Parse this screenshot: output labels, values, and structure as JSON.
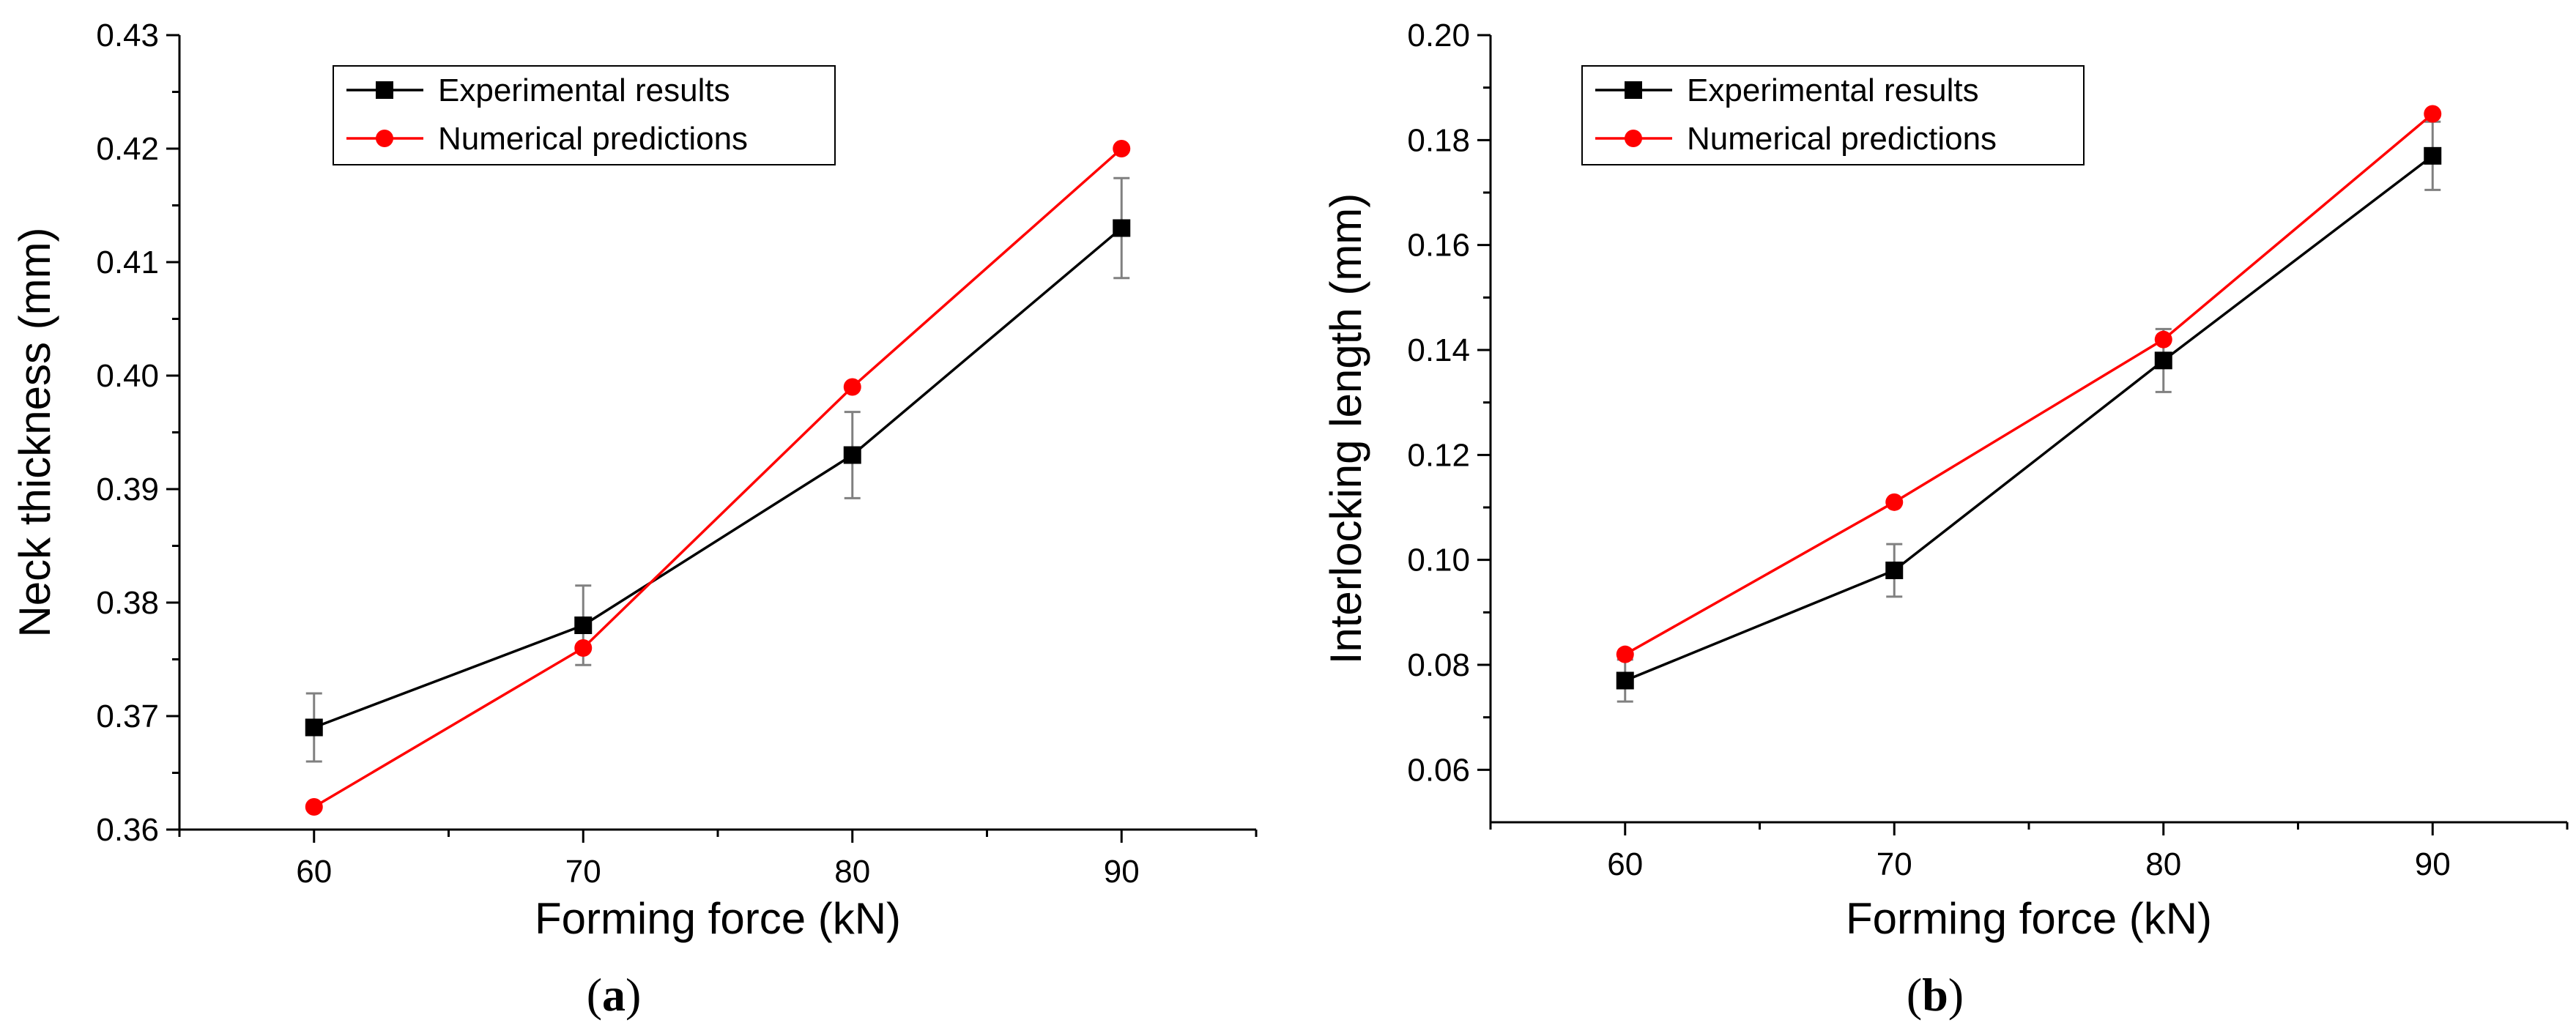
{
  "colors": {
    "experimental": "#000000",
    "numerical": "#ff0000",
    "errorbar": "#808080",
    "axis": "#000000"
  },
  "chart_data": [
    {
      "type": "line",
      "caption_letter": "a",
      "caption_open": "(",
      "caption_close": ")",
      "xlabel": "Forming force (kN)",
      "ylabel": "Neck thickness (mm)",
      "xlim": [
        55,
        95
      ],
      "ylim": [
        0.36,
        0.43
      ],
      "x": [
        60,
        70,
        80,
        90
      ],
      "xticks": [
        "60",
        "70",
        "80",
        "90"
      ],
      "yticks": [
        "0.36",
        "0.37",
        "0.38",
        "0.39",
        "0.40",
        "0.41",
        "0.42",
        "0.43"
      ],
      "yticks_values": [
        0.36,
        0.37,
        0.38,
        0.39,
        0.4,
        0.41,
        0.42,
        0.43
      ],
      "legend_position": "top-left",
      "series": [
        {
          "name": "Experimental results",
          "marker": "square",
          "color": "#000000",
          "values": [
            0.369,
            0.378,
            0.393,
            0.413
          ],
          "errors": [
            0.003,
            0.0035,
            0.0038,
            0.0044
          ]
        },
        {
          "name": "Numerical predictions",
          "marker": "circle",
          "color": "#ff0000",
          "values": [
            0.362,
            0.376,
            0.399,
            0.42
          ]
        }
      ]
    },
    {
      "type": "line",
      "caption_letter": "b",
      "caption_open": "(",
      "caption_close": ")",
      "xlabel": "Forming force (kN)",
      "ylabel": "Interlocking length (mm)",
      "xlim": [
        55,
        95
      ],
      "ylim": [
        0.05,
        0.2
      ],
      "x": [
        60,
        70,
        80,
        90
      ],
      "xticks": [
        "60",
        "70",
        "80",
        "90"
      ],
      "yticks": [
        "0.06",
        "0.08",
        "0.10",
        "0.12",
        "0.14",
        "0.16",
        "0.18",
        "0.20"
      ],
      "yticks_values": [
        0.06,
        0.08,
        0.1,
        0.12,
        0.14,
        0.16,
        0.18,
        0.2
      ],
      "legend_position": "top-left",
      "series": [
        {
          "name": "Experimental results",
          "marker": "square",
          "color": "#000000",
          "values": [
            0.077,
            0.098,
            0.138,
            0.177
          ],
          "errors": [
            0.004,
            0.005,
            0.006,
            0.0065
          ]
        },
        {
          "name": "Numerical predictions",
          "marker": "circle",
          "color": "#ff0000",
          "values": [
            0.082,
            0.111,
            0.142,
            0.185
          ]
        }
      ]
    }
  ]
}
